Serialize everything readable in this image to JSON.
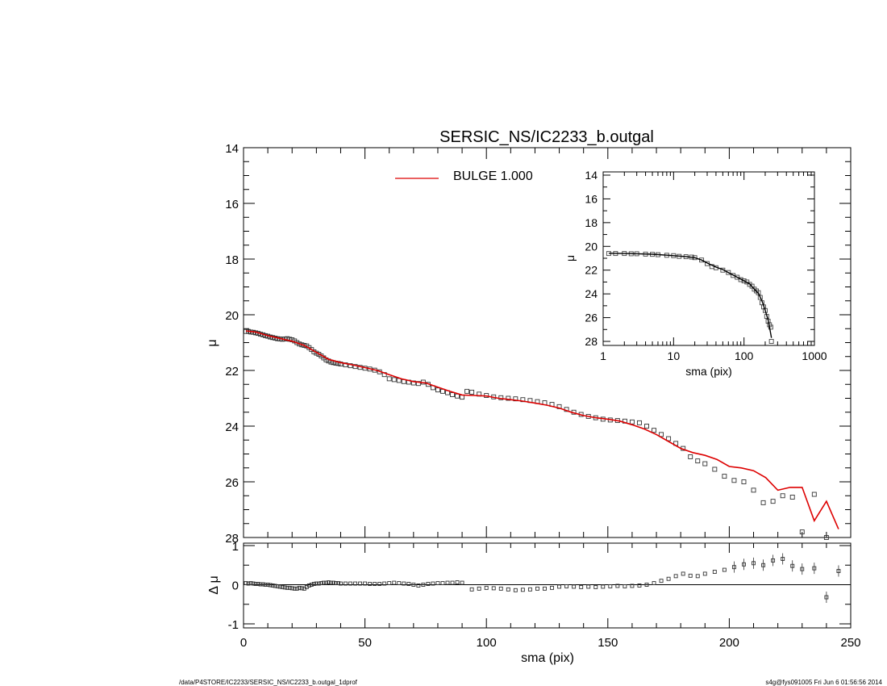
{
  "chart_data": [
    {
      "type": "scatter",
      "title": "SERSIC_NS/IC2233_b.outgal",
      "ylabel": "μ",
      "xlim": [
        0,
        250
      ],
      "ylim": [
        28,
        14
      ],
      "x_ticks": [
        0,
        50,
        100,
        150,
        200,
        250
      ],
      "y_ticks": [
        14,
        16,
        18,
        20,
        22,
        24,
        26,
        28
      ],
      "legend": {
        "placement": "top-center",
        "label": "BULGE  1.000",
        "color": "#dd0000"
      },
      "series": [
        {
          "kind": "points",
          "x": [
            1,
            2,
            3,
            4,
            5,
            6,
            7,
            8,
            9,
            10,
            11,
            12,
            13,
            14,
            15,
            16,
            17,
            18,
            19,
            20,
            21,
            22,
            23,
            24,
            25,
            26,
            27,
            28,
            29,
            30,
            31,
            32,
            33,
            34,
            35,
            36,
            37,
            38,
            39,
            40,
            42,
            44,
            46,
            48,
            50,
            52,
            54,
            56,
            58,
            60,
            62,
            64,
            66,
            68,
            70,
            72,
            74,
            76,
            78,
            80,
            82,
            84,
            86,
            88,
            90,
            92,
            94,
            97,
            100,
            103,
            106,
            109,
            112,
            115,
            118,
            121,
            124,
            127,
            130,
            133,
            136,
            139,
            142,
            145,
            148,
            151,
            154,
            157,
            160,
            163,
            166,
            169,
            172,
            175,
            178,
            181,
            184,
            187,
            190,
            194,
            198,
            202,
            206,
            210,
            214,
            218,
            222,
            226,
            230,
            235,
            240,
            245
          ],
          "y": [
            20.6,
            20.6,
            20.62,
            20.63,
            20.65,
            20.67,
            20.7,
            20.72,
            20.75,
            20.77,
            20.8,
            20.82,
            20.84,
            20.86,
            20.87,
            20.88,
            20.87,
            20.86,
            20.88,
            20.9,
            20.94,
            21.0,
            21.05,
            21.08,
            21.1,
            21.12,
            21.18,
            21.25,
            21.33,
            21.38,
            21.42,
            21.48,
            21.55,
            21.62,
            21.66,
            21.7,
            21.72,
            21.74,
            21.75,
            21.77,
            21.8,
            21.83,
            21.86,
            21.89,
            21.92,
            21.95,
            21.99,
            22.05,
            22.15,
            22.3,
            22.33,
            22.36,
            22.4,
            22.42,
            22.45,
            22.47,
            22.42,
            22.5,
            22.62,
            22.7,
            22.75,
            22.8,
            22.87,
            22.92,
            22.96,
            22.75,
            22.78,
            22.85,
            22.9,
            22.95,
            22.98,
            23.0,
            23.02,
            23.05,
            23.08,
            23.12,
            23.16,
            23.22,
            23.3,
            23.4,
            23.5,
            23.58,
            23.65,
            23.7,
            23.75,
            23.78,
            23.8,
            23.82,
            23.85,
            23.88,
            24.0,
            24.15,
            24.3,
            24.45,
            24.62,
            24.8,
            25.1,
            25.25,
            25.35,
            25.55,
            25.8,
            25.95,
            26.0,
            26.3,
            26.75,
            26.7,
            26.5,
            26.55,
            27.8,
            26.45,
            28.0,
            28.1
          ]
        },
        {
          "kind": "line",
          "name": "BULGE  1.000",
          "color": "#dd0000",
          "x": [
            1,
            5,
            10,
            15,
            20,
            25,
            30,
            35,
            40,
            45,
            50,
            55,
            60,
            65,
            70,
            75,
            80,
            85,
            90,
            95,
            100,
            105,
            110,
            115,
            120,
            125,
            130,
            135,
            140,
            145,
            150,
            155,
            160,
            165,
            170,
            175,
            180,
            185,
            190,
            195,
            200,
            205,
            210,
            215,
            220,
            225,
            230,
            235,
            240,
            245
          ],
          "y": [
            20.58,
            20.62,
            20.75,
            20.85,
            20.95,
            21.1,
            21.35,
            21.6,
            21.72,
            21.8,
            21.9,
            22.0,
            22.15,
            22.3,
            22.4,
            22.45,
            22.6,
            22.75,
            22.88,
            22.9,
            22.92,
            23.0,
            23.05,
            23.1,
            23.17,
            23.25,
            23.35,
            23.5,
            23.62,
            23.7,
            23.75,
            23.82,
            23.95,
            24.1,
            24.3,
            24.55,
            24.8,
            24.95,
            25.05,
            25.2,
            25.45,
            25.5,
            25.6,
            25.85,
            26.3,
            26.2,
            26.2,
            27.4,
            26.7,
            27.7
          ]
        }
      ]
    },
    {
      "type": "scatter",
      "ylabel": "μ",
      "xlabel": "sma (pix)",
      "xscale": "log",
      "xlim": [
        1,
        1000
      ],
      "ylim": [
        28,
        14
      ],
      "x_ticks": [
        1,
        10,
        100,
        1000
      ],
      "y_ticks": [
        14,
        16,
        18,
        20,
        22,
        24,
        26,
        28
      ],
      "legend": "none",
      "series": [
        {
          "kind": "points",
          "x": [
            1.2,
            1.5,
            2,
            2.5,
            3,
            4,
            5,
            6,
            8,
            10,
            12,
            15,
            18,
            20,
            25,
            30,
            35,
            40,
            50,
            60,
            70,
            80,
            90,
            100,
            110,
            120,
            130,
            140,
            150,
            160,
            170,
            180,
            190,
            200,
            210,
            220,
            230,
            240,
            245
          ],
          "y": [
            20.6,
            20.6,
            20.6,
            20.62,
            20.62,
            20.65,
            20.67,
            20.7,
            20.75,
            20.78,
            20.84,
            20.87,
            20.9,
            20.95,
            21.15,
            21.45,
            21.7,
            21.8,
            22.0,
            22.2,
            22.45,
            22.6,
            22.8,
            22.9,
            23.0,
            23.2,
            23.35,
            23.6,
            23.75,
            23.9,
            24.3,
            24.75,
            25.1,
            25.4,
            25.9,
            26.3,
            26.6,
            26.8,
            28.0
          ]
        },
        {
          "kind": "line",
          "x": [
            1.2,
            2,
            3,
            5,
            8,
            10,
            15,
            20,
            25,
            30,
            40,
            50,
            60,
            80,
            100,
            120,
            140,
            160,
            180,
            200,
            220,
            235,
            245
          ],
          "y": [
            20.58,
            20.6,
            20.62,
            20.66,
            20.74,
            20.78,
            20.86,
            20.95,
            21.15,
            21.4,
            21.75,
            21.95,
            22.2,
            22.6,
            22.9,
            23.15,
            23.6,
            23.95,
            24.6,
            25.4,
            26.2,
            27.1,
            27.7
          ]
        }
      ]
    },
    {
      "type": "scatter",
      "ylabel": "Δ μ",
      "xlabel": "sma (pix)",
      "xlim": [
        0,
        250
      ],
      "ylim": [
        -1,
        1
      ],
      "x_ticks": [
        0,
        50,
        100,
        150,
        200,
        250
      ],
      "y_ticks": [
        1,
        0,
        -1
      ],
      "zero_line": true,
      "series": [
        {
          "kind": "points",
          "x": [
            1,
            2,
            3,
            4,
            5,
            6,
            7,
            8,
            9,
            10,
            11,
            12,
            13,
            14,
            15,
            16,
            17,
            18,
            19,
            20,
            21,
            22,
            23,
            24,
            25,
            26,
            27,
            28,
            29,
            30,
            31,
            32,
            33,
            34,
            35,
            36,
            37,
            38,
            39,
            40,
            42,
            44,
            46,
            48,
            50,
            52,
            54,
            56,
            58,
            60,
            62,
            64,
            66,
            68,
            70,
            72,
            74,
            76,
            78,
            80,
            82,
            84,
            86,
            88,
            90,
            94,
            97,
            100,
            103,
            106,
            109,
            112,
            115,
            118,
            121,
            124,
            127,
            130,
            133,
            136,
            139,
            142,
            145,
            148,
            151,
            154,
            157,
            160,
            163,
            166,
            169,
            172,
            175,
            178,
            181,
            184,
            187,
            190,
            194,
            198,
            202,
            206,
            210,
            214,
            218,
            222,
            226,
            230,
            235,
            240,
            245
          ],
          "y": [
            0.04,
            0.03,
            0.04,
            0.03,
            0.02,
            0.02,
            0.01,
            0.01,
            0.0,
            0.0,
            -0.01,
            -0.02,
            -0.03,
            -0.04,
            -0.05,
            -0.06,
            -0.07,
            -0.08,
            -0.08,
            -0.09,
            -0.1,
            -0.1,
            -0.08,
            -0.09,
            -0.1,
            -0.06,
            -0.02,
            0.0,
            0.02,
            0.03,
            0.03,
            0.04,
            0.05,
            0.05,
            0.06,
            0.05,
            0.05,
            0.04,
            0.04,
            0.03,
            0.03,
            0.03,
            0.03,
            0.03,
            0.03,
            0.02,
            0.02,
            0.02,
            0.03,
            0.04,
            0.05,
            0.04,
            0.03,
            0.02,
            0.0,
            -0.02,
            0.0,
            0.02,
            0.03,
            0.04,
            0.04,
            0.05,
            0.05,
            0.06,
            0.05,
            -0.12,
            -0.1,
            -0.08,
            -0.09,
            -0.1,
            -0.12,
            -0.14,
            -0.13,
            -0.12,
            -0.1,
            -0.1,
            -0.08,
            -0.05,
            -0.04,
            -0.05,
            -0.06,
            -0.05,
            -0.06,
            -0.05,
            -0.04,
            -0.03,
            -0.04,
            -0.03,
            -0.02,
            0.0,
            0.04,
            0.1,
            0.15,
            0.22,
            0.28,
            0.23,
            0.22,
            0.28,
            0.33,
            0.38,
            0.45,
            0.52,
            0.55,
            0.5,
            0.62,
            0.66,
            0.48,
            0.4,
            0.42,
            -0.32,
            0.35
          ]
        }
      ]
    }
  ],
  "footer": {
    "left": "/data/P4STORE/IC2233/SERSIC_NS/IC2233_b.outgal_1dprof",
    "right": "s4g@fys091005  Fri Jun  6 01:56:56 2014"
  }
}
